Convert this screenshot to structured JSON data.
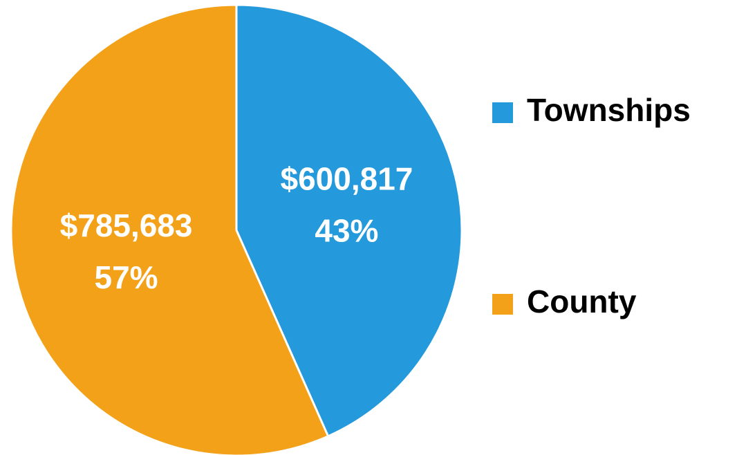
{
  "chart_data": {
    "type": "pie",
    "categories": [
      "Townships",
      "County"
    ],
    "values": [
      600817,
      785683
    ],
    "value_labels": [
      "$600,817",
      "$785,683"
    ],
    "percent_labels": [
      "43%",
      "57%"
    ],
    "colors": [
      "#2499db",
      "#f4a11a"
    ],
    "legend": "right"
  }
}
